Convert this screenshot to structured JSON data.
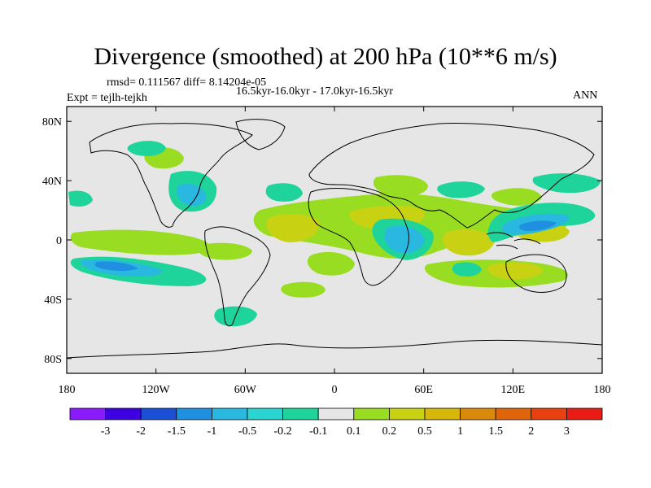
{
  "title": "Divergence (smoothed) at 200 hPa (10**6 m/s)",
  "stats": "rmsd= 0.111567 diff= 8.14204e-05",
  "period": "16.5kyr-16.0kyr - 17.0kyr-16.5kyr",
  "experiment": "Expt = tejlh-tejkh",
  "season": "ANN",
  "map": {
    "projection": "cylindrical-equidistant",
    "lon_range": [
      -180,
      180
    ],
    "lat_range": [
      -90,
      90
    ],
    "background_color": "#e6e6e6",
    "lat_ticks": [
      {
        "value": 80,
        "label": "80N"
      },
      {
        "value": 40,
        "label": "40N"
      },
      {
        "value": 0,
        "label": "0"
      },
      {
        "value": -40,
        "label": "40S"
      },
      {
        "value": -80,
        "label": "80S"
      }
    ],
    "lon_ticks": [
      {
        "value": -180,
        "label": "180"
      },
      {
        "value": -120,
        "label": "120W"
      },
      {
        "value": -60,
        "label": "60W"
      },
      {
        "value": 0,
        "label": "0"
      },
      {
        "value": 60,
        "label": "60E"
      },
      {
        "value": 120,
        "label": "120E"
      },
      {
        "value": 180,
        "label": "180"
      }
    ]
  },
  "colorbar": {
    "colors": [
      "#8c1aff",
      "#3d00e0",
      "#1a4fd6",
      "#1f8fe0",
      "#29b8e0",
      "#2ad4d0",
      "#1fd49a",
      "#e6e6e6",
      "#99dd22",
      "#c8d212",
      "#d9b60a",
      "#d98a0a",
      "#e0650a",
      "#e8400f",
      "#e81c14"
    ],
    "labels": [
      "-3",
      "-2",
      "-1.5",
      "-1",
      "-0.5",
      "-0.2",
      "-0.1",
      "0.1",
      "0.2",
      "0.5",
      "1",
      "1.5",
      "2",
      "3"
    ]
  }
}
